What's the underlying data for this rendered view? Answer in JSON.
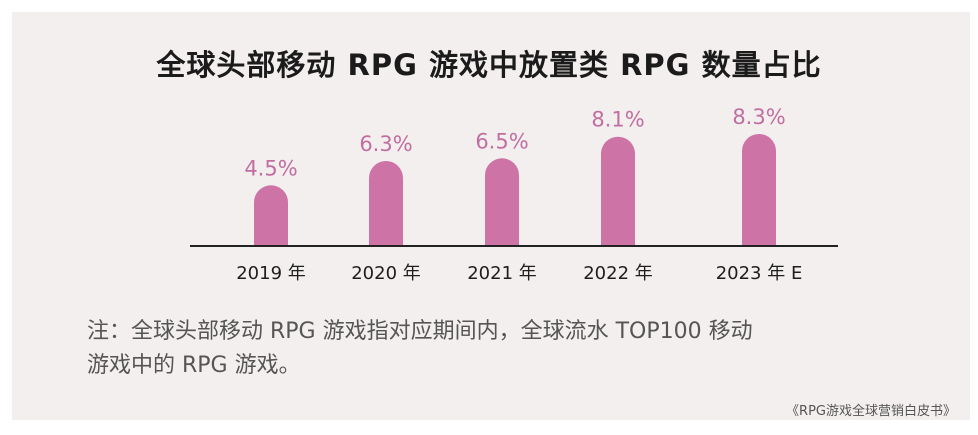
{
  "chart_data": {
    "type": "bar",
    "title": "全球头部移动 RPG 游戏中放置类 RPG 数量占比",
    "categories": [
      "2019 年",
      "2020 年",
      "2021 年",
      "2022 年",
      "2023 年 E"
    ],
    "values": [
      4.5,
      6.3,
      6.5,
      8.1,
      8.3
    ],
    "value_labels": [
      "4.5%",
      "6.3%",
      "6.5%",
      "8.1%",
      "8.3%"
    ],
    "unit": "%",
    "ylim": [
      0,
      9
    ],
    "bar_color": "#cd73a5",
    "label_color": "#c06fa0",
    "axis_color": "#222222"
  },
  "note_lines": [
    "注：全球头部移动 RPG 游戏指对应期间内，全球流水 TOP100 移动",
    "游戏中的 RPG 游戏。"
  ],
  "source": "《RPG游戏全球营销白皮书》"
}
